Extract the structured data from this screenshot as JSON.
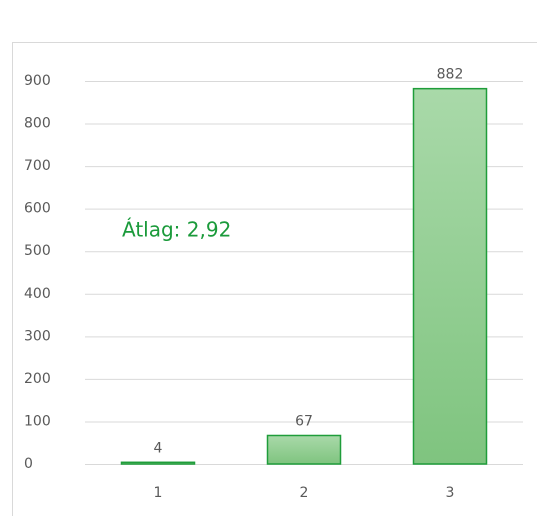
{
  "chart_data": {
    "type": "bar",
    "categories": [
      "1",
      "2",
      "3"
    ],
    "values": [
      4,
      67,
      882
    ],
    "color": "#1f9d3a",
    "ylim": [
      0,
      900
    ],
    "yticks": [
      0,
      100,
      200,
      300,
      400,
      500,
      600,
      700,
      800,
      900
    ],
    "grid": true,
    "annotation": {
      "text": "Átlag: 2,92",
      "color": "#1a9a3a"
    }
  }
}
